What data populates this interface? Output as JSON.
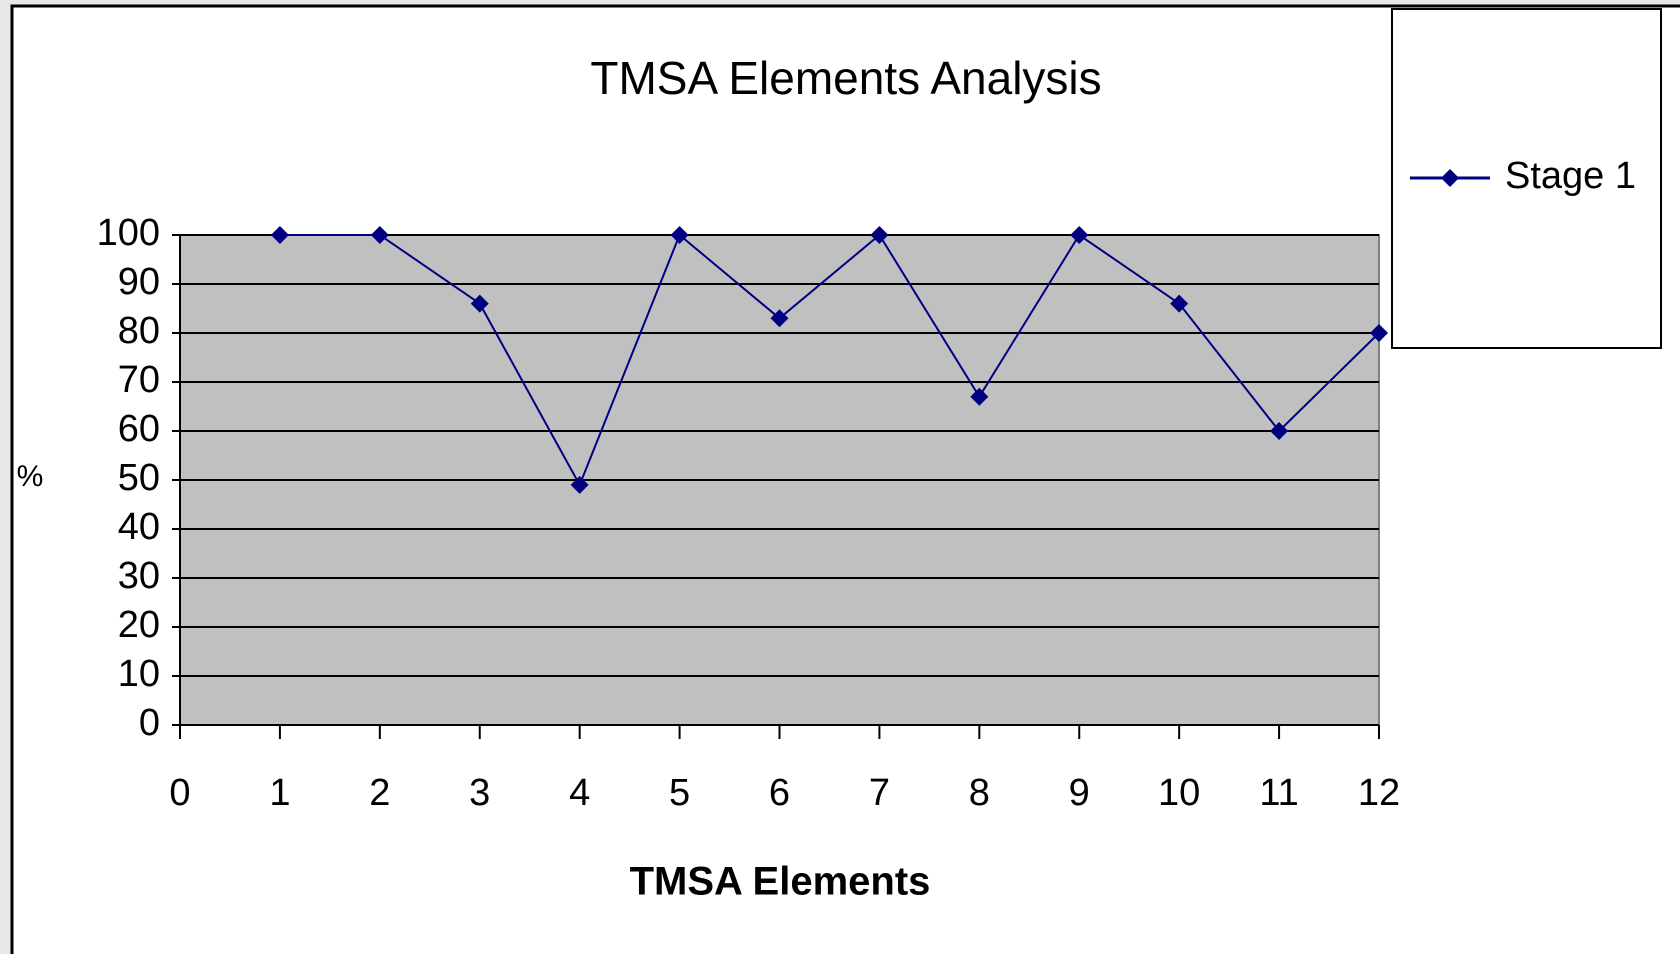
{
  "chart_data": {
    "type": "line",
    "title": "TMSA Elements Analysis",
    "x_label": "TMSA Elements",
    "y_label": "%",
    "x": [
      1,
      2,
      3,
      4,
      5,
      6,
      7,
      8,
      9,
      10,
      11,
      12
    ],
    "series": [
      {
        "name": "Stage 1",
        "color": "#000080",
        "values": [
          100,
          100,
          86,
          49,
          100,
          83,
          100,
          67,
          100,
          86,
          60,
          80
        ]
      }
    ],
    "xlim": [
      0,
      12
    ],
    "xticks": [
      0,
      1,
      2,
      3,
      4,
      5,
      6,
      7,
      8,
      9,
      10,
      11,
      12
    ],
    "ylim": [
      0,
      100
    ],
    "yticks": [
      0,
      10,
      20,
      30,
      40,
      50,
      60,
      70,
      80,
      90,
      100
    ],
    "grid": true,
    "legend": "top-right"
  }
}
